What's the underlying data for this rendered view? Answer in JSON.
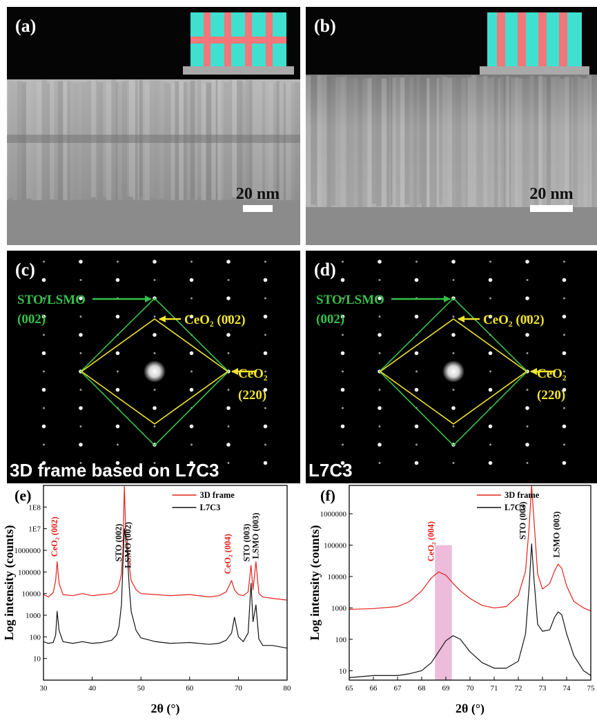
{
  "panels": [
    {
      "label": "(a)",
      "scale_bar_label": "20 nm"
    },
    {
      "label": "(b)",
      "scale_bar_label": "20 nm"
    },
    {
      "label": "(c)",
      "spot_labels": [
        "STO/LSMO",
        "(002)",
        "CeO₂ (002)",
        "CeO₂",
        "(220)"
      ],
      "caption": "3D frame based on L7C3"
    },
    {
      "label": "(d)",
      "spot_labels": [
        "STO/LSMO",
        "(002)",
        "CeO₂ (002)",
        "CeO₂",
        "(220)"
      ],
      "caption": "L7C3"
    }
  ],
  "chart_data": [
    {
      "type": "line",
      "panel_label": "(e)",
      "xlabel": "2θ (°)",
      "ylabel": "Log intensity (counts)",
      "log_y": true,
      "xlim": [
        30,
        80
      ],
      "ylim": [
        1,
        1000000000
      ],
      "xticks": [
        30,
        40,
        50,
        60,
        70,
        80
      ],
      "yticks": [
        10,
        100,
        1000,
        10000,
        100000,
        1000000,
        {
          "value": 10000000,
          "label": "1E7"
        },
        {
          "value": 100000000,
          "label": "1E8"
        }
      ],
      "legend": "upper center",
      "x": [
        30,
        31,
        32,
        32.5,
        32.8,
        33.2,
        34,
        36,
        38,
        40,
        42,
        44,
        45,
        45.5,
        46,
        46.3,
        46.6,
        46.9,
        47.2,
        47.6,
        48,
        49,
        50,
        53,
        56,
        60,
        64,
        66,
        67.5,
        68.6,
        69.2,
        70,
        71,
        72,
        72.6,
        73,
        73.6,
        74.2,
        75,
        77,
        80
      ],
      "series": [
        {
          "name": "3D frame",
          "color": "#e3201b",
          "values": [
            9000,
            7000,
            11000,
            40000,
            300000,
            30000,
            9000,
            8000,
            10000,
            8000,
            9000,
            10000,
            14000,
            25000,
            80000,
            1000000,
            900000000,
            5000000,
            3000000,
            200000,
            40000,
            15000,
            10000,
            9000,
            8000,
            9000,
            7000,
            8000,
            12000,
            40000,
            15000,
            9000,
            8000,
            12000,
            200000,
            15000,
            300000,
            10000,
            7000,
            6000,
            5000
          ]
        },
        {
          "name": "L7C3",
          "color": "#111111",
          "values": [
            60,
            50,
            55,
            120,
            1500,
            200,
            60,
            50,
            60,
            50,
            55,
            70,
            120,
            300,
            3000,
            200000,
            10000000,
            3000000,
            800000,
            20000,
            1500,
            200,
            90,
            60,
            50,
            55,
            45,
            50,
            70,
            150,
            800,
            100,
            60,
            150,
            30000,
            500,
            3000,
            80,
            40,
            40,
            30
          ]
        }
      ],
      "annotations": [
        {
          "text": "CeO₂ (002)",
          "x": 32.8,
          "y": 500000,
          "color": "#e3201b"
        },
        {
          "text": "STO (002)",
          "x": 46.0,
          "y": 300000,
          "color": "#111111"
        },
        {
          "text": "LSMO (002)",
          "x": 47.9,
          "y": 150000,
          "color": "#111111"
        },
        {
          "text": "CeO₂ (004)",
          "x": 68.4,
          "y": 80000,
          "color": "#e3201b"
        },
        {
          "text": "STO (003)",
          "x": 72.3,
          "y": 300000,
          "color": "#111111"
        },
        {
          "text": "LSMO (003)",
          "x": 74.1,
          "y": 400000,
          "color": "#111111"
        }
      ]
    },
    {
      "type": "line",
      "panel_label": "(f)",
      "xlabel": "2θ (°)",
      "ylabel": "Log intensity (counts)",
      "log_y": true,
      "xlim": [
        65,
        75
      ],
      "ylim": [
        5,
        8000000
      ],
      "xticks": [
        65,
        66,
        67,
        68,
        69,
        70,
        71,
        72,
        73,
        74,
        75
      ],
      "yticks": [
        10,
        100,
        1000,
        10000,
        100000,
        1000000
      ],
      "legend": "upper center",
      "highlight": {
        "x": [
          68.55,
          69.25
        ],
        "ymax": 100000,
        "color": "#e8a6cf"
      },
      "x": [
        65,
        66,
        67,
        67.5,
        68,
        68.4,
        68.7,
        69,
        69.3,
        69.6,
        70,
        70.5,
        71,
        71.5,
        72,
        72.3,
        72.45,
        72.55,
        72.65,
        72.8,
        73,
        73.3,
        73.5,
        73.65,
        73.8,
        74,
        74.3,
        74.7,
        75
      ],
      "series": [
        {
          "name": "3D frame",
          "color": "#e3201b",
          "values": [
            900,
            950,
            1100,
            1600,
            3500,
            9000,
            14000,
            11000,
            6000,
            3500,
            2000,
            1200,
            1000,
            1100,
            2500,
            15000,
            400000,
            8000000,
            600000,
            12000,
            4000,
            6000,
            15000,
            25000,
            18000,
            5000,
            1600,
            1000,
            800
          ]
        },
        {
          "name": "L7C3",
          "color": "#111111",
          "values": [
            6,
            7,
            7,
            8,
            10,
            18,
            40,
            90,
            130,
            100,
            40,
            18,
            12,
            12,
            20,
            150,
            5000,
            110000,
            8000,
            300,
            180,
            200,
            500,
            750,
            600,
            150,
            30,
            10,
            7
          ]
        }
      ],
      "annotations": [
        {
          "text": "CeO₂ (004)",
          "x": 68.5,
          "y": 30000,
          "color": "#e3201b"
        },
        {
          "text": "STO (003)",
          "x": 72.3,
          "y": 150000,
          "color": "#111111"
        },
        {
          "text": "LSMO (003)",
          "x": 73.7,
          "y": 40000,
          "color": "#111111"
        }
      ]
    }
  ]
}
